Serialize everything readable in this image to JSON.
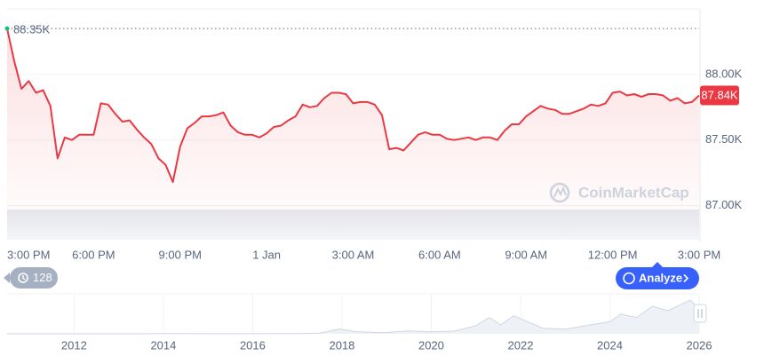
{
  "chart_data": [
    {
      "type": "line",
      "color": "#ea3943",
      "grid": true,
      "x": [
        0,
        0.25,
        0.5,
        0.75,
        1,
        1.25,
        1.5,
        1.75,
        2,
        2.25,
        2.5,
        2.75,
        3,
        3.25,
        3.5,
        3.75,
        4,
        4.25,
        4.5,
        4.75,
        5,
        5.25,
        5.5,
        5.75,
        6,
        6.25,
        6.5,
        6.75,
        7,
        7.25,
        7.5,
        7.75,
        8,
        8.25,
        8.5,
        8.75,
        9,
        9.25,
        9.5,
        9.75,
        10,
        10.25,
        10.5,
        10.75,
        11,
        11.25,
        11.5,
        11.75,
        12,
        12.25,
        12.5,
        12.75,
        13,
        13.25,
        13.5,
        13.75,
        14,
        14.25,
        14.5,
        14.75,
        15,
        15.25,
        15.5,
        15.75,
        16,
        16.25,
        16.5,
        16.75,
        17,
        17.25,
        17.5,
        17.75,
        18,
        18.25,
        18.5,
        18.75,
        19,
        19.25,
        19.5,
        19.75,
        20,
        20.25,
        20.5,
        20.75,
        21,
        21.25,
        21.5,
        21.75,
        22,
        22.25,
        22.5,
        22.75,
        23,
        23.25,
        23.5,
        23.75,
        24
      ],
      "values": [
        88350,
        88100,
        87890,
        87950,
        87860,
        87880,
        87760,
        87360,
        87520,
        87500,
        87540,
        87540,
        87540,
        87780,
        87770,
        87700,
        87640,
        87650,
        87580,
        87520,
        87470,
        87360,
        87310,
        87180,
        87450,
        87590,
        87630,
        87680,
        87680,
        87690,
        87710,
        87610,
        87560,
        87540,
        87540,
        87520,
        87550,
        87600,
        87610,
        87650,
        87680,
        87770,
        87750,
        87760,
        87820,
        87860,
        87860,
        87850,
        87780,
        87790,
        87790,
        87770,
        87690,
        87430,
        87440,
        87420,
        87480,
        87540,
        87560,
        87540,
        87540,
        87510,
        87500,
        87510,
        87520,
        87500,
        87520,
        87520,
        87500,
        87570,
        87620,
        87620,
        87680,
        87720,
        87760,
        87740,
        87730,
        87700,
        87700,
        87720,
        87740,
        87770,
        87760,
        87780,
        87860,
        87870,
        87840,
        87850,
        87830,
        87850,
        87850,
        87840,
        87800,
        87820,
        87780,
        87790,
        87840
      ],
      "xlim": [
        0,
        24
      ],
      "xticks": [
        {
          "value": 0,
          "label": "3:00 PM"
        },
        {
          "value": 3,
          "label": "6:00 PM"
        },
        {
          "value": 6,
          "label": "9:00 PM"
        },
        {
          "value": 9,
          "label": "1 Jan"
        },
        {
          "value": 12,
          "label": "3:00 AM"
        },
        {
          "value": 15,
          "label": "6:00 AM"
        },
        {
          "value": 18,
          "label": "9:00 AM"
        },
        {
          "value": 21,
          "label": "12:00 PM"
        },
        {
          "value": 24,
          "label": "3:00 PM"
        }
      ],
      "ylim": [
        86740,
        88500
      ],
      "yticks": [
        {
          "value": 87000,
          "label": "87.00K"
        },
        {
          "value": 87500,
          "label": "87.50K"
        },
        {
          "value": 88000,
          "label": "88.00K"
        }
      ],
      "high": {
        "value": 88350,
        "label": "88.35K"
      },
      "last": {
        "value": 87840,
        "label": "87.84K"
      },
      "watermark": "CoinMarketCap"
    },
    {
      "type": "area",
      "color": "#cfd6e4",
      "x": [
        2010.5,
        2011,
        2011.5,
        2012,
        2012.5,
        2013,
        2013.5,
        2013.9,
        2014.5,
        2015,
        2015.5,
        2016,
        2016.5,
        2017,
        2017.5,
        2017.95,
        2018.3,
        2018.9,
        2019.5,
        2020,
        2020.5,
        2021,
        2021.3,
        2021.55,
        2021.85,
        2022.5,
        2023,
        2023.5,
        2024,
        2024.25,
        2024.6,
        2024.95,
        2025.3,
        2025.8,
        2026
      ],
      "values": [
        0,
        1,
        15,
        5,
        7,
        13,
        90,
        1000,
        620,
        250,
        260,
        430,
        650,
        1000,
        2500,
        17000,
        8000,
        3800,
        10000,
        7200,
        9200,
        29000,
        58000,
        32000,
        64000,
        20000,
        16500,
        30000,
        43000,
        70000,
        58000,
        98000,
        82000,
        120000,
        87840
      ],
      "xlim": [
        2010.5,
        2026
      ],
      "xticks": [
        2012,
        2014,
        2016,
        2018,
        2020,
        2022,
        2024,
        2026
      ]
    }
  ],
  "controls": {
    "history_count": 128,
    "analyze_button": "Analyze"
  }
}
